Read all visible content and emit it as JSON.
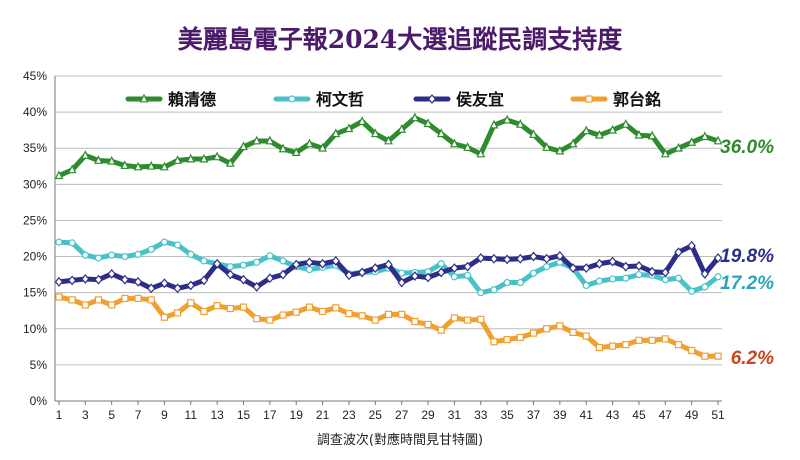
{
  "chart_data": {
    "type": "line",
    "title": "美麗島電子報2024大選追蹤民調支持度",
    "xlabel": "調查波次(對應時間見甘特圖)",
    "ylabel": "",
    "ylim": [
      0,
      45
    ],
    "y_ticks": [
      "0%",
      "5%",
      "10%",
      "15%",
      "20%",
      "25%",
      "30%",
      "35%",
      "40%",
      "45%"
    ],
    "x": [
      1,
      2,
      3,
      4,
      5,
      6,
      7,
      8,
      9,
      10,
      11,
      12,
      13,
      14,
      15,
      16,
      17,
      18,
      19,
      20,
      21,
      22,
      23,
      24,
      25,
      26,
      27,
      28,
      29,
      30,
      31,
      32,
      33,
      34,
      35,
      36,
      37,
      38,
      39,
      40,
      41,
      42,
      43,
      44,
      45,
      46,
      47,
      48,
      49,
      50,
      51
    ],
    "x_tick_labels": [
      "1",
      "3",
      "5",
      "7",
      "9",
      "11",
      "13",
      "15",
      "17",
      "19",
      "21",
      "23",
      "25",
      "27",
      "29",
      "31",
      "33",
      "35",
      "37",
      "39",
      "41",
      "43",
      "45",
      "47",
      "49",
      "51"
    ],
    "grid": true,
    "legend_placement": "top",
    "series": [
      {
        "name": "賴清德",
        "color": "#2e8b2e",
        "marker": "triangle",
        "end_label": "36.0%",
        "values": [
          31.2,
          32.0,
          34.0,
          33.3,
          33.2,
          32.6,
          32.4,
          32.5,
          32.4,
          33.3,
          33.5,
          33.5,
          33.8,
          32.9,
          35.2,
          36.0,
          36.0,
          34.9,
          34.4,
          35.6,
          35.0,
          37.0,
          37.7,
          38.7,
          37.0,
          36.0,
          37.6,
          39.2,
          38.4,
          37.0,
          35.6,
          35.1,
          34.2,
          38.2,
          38.9,
          38.3,
          36.9,
          35.1,
          34.6,
          35.6,
          37.4,
          36.8,
          37.5,
          38.3,
          36.8,
          36.7,
          34.2,
          35.0,
          35.8,
          36.6,
          36.0
        ]
      },
      {
        "name": "柯文哲",
        "color": "#48c2c8",
        "marker": "circle",
        "end_label": "17.2%",
        "values": [
          22.0,
          21.9,
          20.2,
          19.8,
          20.2,
          20.0,
          20.3,
          21.0,
          22.0,
          21.6,
          20.3,
          19.4,
          19.0,
          18.6,
          18.8,
          19.2,
          20.1,
          19.4,
          18.6,
          18.2,
          18.5,
          18.8,
          17.6,
          17.8,
          17.9,
          18.4,
          17.7,
          17.8,
          17.9,
          19.0,
          17.2,
          17.4,
          15.0,
          15.4,
          16.4,
          16.4,
          17.7,
          18.6,
          19.2,
          18.4,
          16.0,
          16.6,
          16.9,
          17.0,
          17.5,
          17.4,
          16.8,
          17.0,
          15.2,
          15.8,
          17.2
        ]
      },
      {
        "name": "侯友宜",
        "color": "#2e2e8a",
        "marker": "diamond",
        "end_label": "19.8%",
        "values": [
          16.5,
          16.7,
          16.9,
          16.8,
          17.6,
          16.8,
          16.5,
          15.6,
          16.3,
          15.6,
          16.0,
          16.7,
          19.0,
          17.5,
          16.8,
          15.8,
          17.0,
          17.5,
          18.9,
          19.2,
          19.0,
          19.4,
          17.4,
          17.8,
          18.4,
          18.9,
          16.4,
          17.3,
          17.1,
          17.8,
          18.4,
          18.6,
          19.8,
          19.7,
          19.6,
          19.7,
          20.0,
          19.7,
          20.1,
          18.4,
          18.4,
          19.0,
          19.3,
          18.6,
          18.7,
          17.9,
          17.8,
          20.6,
          21.5,
          17.6,
          19.8
        ]
      },
      {
        "name": "郭台銘",
        "color": "#f0a030",
        "marker": "square",
        "end_label": "6.2%",
        "values": [
          14.4,
          14.0,
          13.3,
          14.0,
          13.3,
          14.2,
          14.2,
          14.0,
          11.6,
          12.2,
          13.6,
          12.4,
          13.2,
          12.8,
          13.0,
          11.4,
          11.2,
          11.9,
          12.3,
          13.0,
          12.4,
          12.9,
          12.1,
          11.8,
          11.2,
          12.0,
          12.0,
          11.0,
          10.6,
          9.8,
          11.5,
          11.2,
          11.3,
          8.2,
          8.5,
          8.8,
          9.4,
          10.0,
          10.4,
          9.5,
          9.0,
          7.4,
          7.6,
          7.8,
          8.4,
          8.4,
          8.6,
          7.8,
          7.0,
          6.2,
          6.2
        ]
      }
    ]
  }
}
